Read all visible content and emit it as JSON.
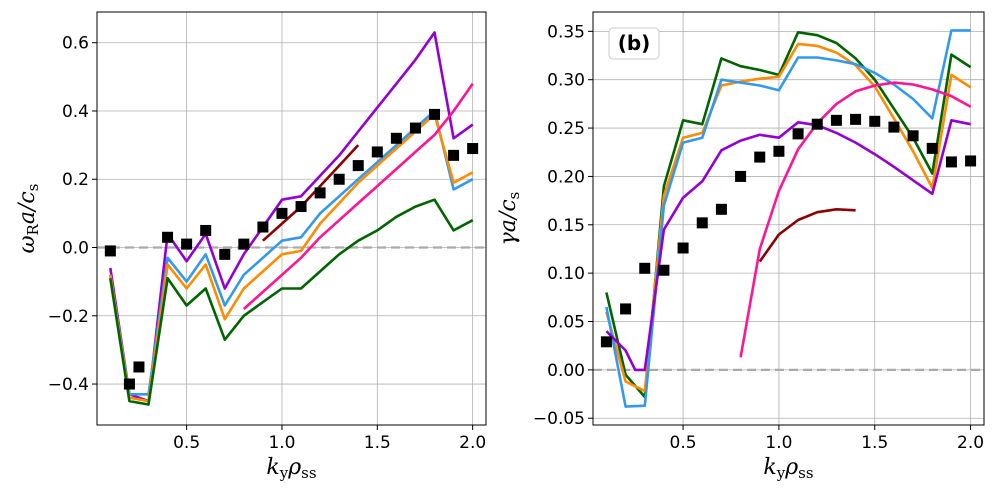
{
  "chart_data": [
    {
      "type": "line",
      "panel": "left",
      "title": "",
      "annotation": "",
      "xlabel_main": "k",
      "xlabel_sub1": "y",
      "xlabel_main2": "ρ",
      "xlabel_sub2": "ss",
      "ylabel_main": "ω",
      "ylabel_sub1": "R",
      "ylabel_main2": "a/c",
      "ylabel_sub2": "s",
      "xlim": [
        0.03,
        2.07
      ],
      "ylim": [
        -0.52,
        0.69
      ],
      "xticks": [
        0.5,
        1.0,
        1.5,
        2.0
      ],
      "xtick_labels": [
        "0.5",
        "1.0",
        "1.5",
        "2.0"
      ],
      "yticks": [
        -0.4,
        -0.2,
        0.0,
        0.2,
        0.4,
        0.6
      ],
      "ytick_labels": [
        "−0.4",
        "−0.2",
        "0.0",
        "0.2",
        "0.4",
        "0.6"
      ],
      "grid": true,
      "zero_line": true,
      "series": [
        {
          "name": "purple",
          "color": "#9400d3",
          "x": [
            0.1,
            0.2,
            0.3,
            0.4,
            0.5,
            0.6,
            0.7,
            0.8,
            0.9,
            1.0,
            1.1,
            1.2,
            1.3,
            1.4,
            1.5,
            1.6,
            1.7,
            1.8,
            1.9,
            2.0
          ],
          "y": [
            -0.06,
            -0.43,
            -0.45,
            0.04,
            -0.04,
            0.04,
            -0.12,
            -0.02,
            0.06,
            0.14,
            0.15,
            0.21,
            0.27,
            0.34,
            0.41,
            0.48,
            0.55,
            0.63,
            0.32,
            0.36
          ]
        },
        {
          "name": "blue",
          "color": "#3399ee",
          "x": [
            0.1,
            0.2,
            0.3,
            0.4,
            0.5,
            0.6,
            0.7,
            0.8,
            0.9,
            1.0,
            1.1,
            1.2,
            1.3,
            1.4,
            1.5,
            1.6,
            1.7,
            1.8,
            1.9,
            2.0
          ],
          "y": [
            -0.08,
            -0.43,
            -0.43,
            -0.03,
            -0.1,
            -0.02,
            -0.17,
            -0.08,
            -0.03,
            0.02,
            0.03,
            0.1,
            0.15,
            0.2,
            0.25,
            0.3,
            0.35,
            0.4,
            0.17,
            0.2
          ]
        },
        {
          "name": "orange",
          "color": "#ff8c00",
          "x": [
            0.1,
            0.2,
            0.3,
            0.4,
            0.5,
            0.6,
            0.7,
            0.8,
            0.9,
            1.0,
            1.1,
            1.2,
            1.3,
            1.4,
            1.5,
            1.6,
            1.7,
            1.8,
            1.9,
            2.0
          ],
          "y": [
            -0.08,
            -0.44,
            -0.45,
            -0.05,
            -0.12,
            -0.05,
            -0.21,
            -0.12,
            -0.07,
            -0.02,
            -0.01,
            0.07,
            0.13,
            0.19,
            0.24,
            0.29,
            0.34,
            0.39,
            0.19,
            0.22
          ]
        },
        {
          "name": "green",
          "color": "#006400",
          "x": [
            0.1,
            0.2,
            0.3,
            0.4,
            0.5,
            0.6,
            0.7,
            0.8,
            0.9,
            1.0,
            1.1,
            1.2,
            1.3,
            1.4,
            1.5,
            1.6,
            1.7,
            1.8,
            1.9,
            2.0
          ],
          "y": [
            -0.09,
            -0.45,
            -0.46,
            -0.09,
            -0.17,
            -0.12,
            -0.27,
            -0.2,
            -0.16,
            -0.12,
            -0.12,
            -0.07,
            -0.02,
            0.02,
            0.05,
            0.09,
            0.12,
            0.14,
            0.05,
            0.08
          ]
        },
        {
          "name": "pink",
          "color": "#ff1493",
          "x": [
            0.8,
            0.9,
            1.0,
            1.1,
            1.2,
            1.3,
            1.4,
            1.5,
            1.6,
            1.7,
            1.8,
            1.9,
            2.0
          ],
          "y": [
            -0.18,
            -0.13,
            -0.08,
            -0.03,
            0.03,
            0.08,
            0.13,
            0.18,
            0.23,
            0.28,
            0.33,
            0.4,
            0.48
          ]
        },
        {
          "name": "darkred",
          "color": "#8b0000",
          "x": [
            0.9,
            1.0,
            1.1,
            1.2,
            1.3,
            1.4
          ],
          "y": [
            0.02,
            0.07,
            0.12,
            0.18,
            0.24,
            0.3
          ]
        }
      ],
      "markers": {
        "name": "data",
        "color": "#000000",
        "x": [
          0.1,
          0.2,
          0.25,
          0.4,
          0.5,
          0.6,
          0.7,
          0.8,
          0.9,
          1.0,
          1.1,
          1.2,
          1.3,
          1.4,
          1.5,
          1.6,
          1.7,
          1.8,
          1.9,
          2.0
        ],
        "y": [
          -0.01,
          -0.4,
          -0.35,
          0.03,
          0.01,
          0.05,
          -0.02,
          0.01,
          0.06,
          0.1,
          0.12,
          0.16,
          0.2,
          0.24,
          0.28,
          0.32,
          0.35,
          0.39,
          0.27,
          0.29
        ]
      }
    },
    {
      "type": "line",
      "panel": "right",
      "title": "",
      "annotation": "(b)",
      "xlabel_main": "k",
      "xlabel_sub1": "y",
      "xlabel_main2": "ρ",
      "xlabel_sub2": "ss",
      "ylabel_main": "γ",
      "ylabel_sub1": "",
      "ylabel_main2": "a/c",
      "ylabel_sub2": "s",
      "xlim": [
        0.03,
        2.07
      ],
      "ylim": [
        -0.057,
        0.37
      ],
      "xticks": [
        0.5,
        1.0,
        1.5,
        2.0
      ],
      "xtick_labels": [
        "0.5",
        "1.0",
        "1.5",
        "2.0"
      ],
      "yticks": [
        -0.05,
        0.0,
        0.05,
        0.1,
        0.15,
        0.2,
        0.25,
        0.3,
        0.35
      ],
      "ytick_labels": [
        "−0.05",
        "0.00",
        "0.05",
        "0.10",
        "0.15",
        "0.20",
        "0.25",
        "0.30",
        "0.35"
      ],
      "grid": true,
      "zero_line": true,
      "series": [
        {
          "name": "green",
          "color": "#006400",
          "x": [
            0.1,
            0.2,
            0.3,
            0.4,
            0.5,
            0.6,
            0.7,
            0.8,
            0.9,
            1.0,
            1.1,
            1.2,
            1.3,
            1.4,
            1.5,
            1.6,
            1.7,
            1.8,
            1.9,
            2.0
          ],
          "y": [
            0.08,
            -0.005,
            -0.028,
            0.19,
            0.258,
            0.254,
            0.322,
            0.314,
            0.31,
            0.305,
            0.349,
            0.346,
            0.338,
            0.322,
            0.3,
            0.27,
            0.24,
            0.203,
            0.326,
            0.313
          ]
        },
        {
          "name": "orange",
          "color": "#ff8c00",
          "x": [
            0.1,
            0.2,
            0.3,
            0.4,
            0.5,
            0.6,
            0.7,
            0.8,
            0.9,
            1.0,
            1.1,
            1.2,
            1.3,
            1.4,
            1.5,
            1.6,
            1.7,
            1.8,
            1.9,
            2.0
          ],
          "y": [
            0.06,
            -0.012,
            -0.022,
            0.18,
            0.24,
            0.245,
            0.294,
            0.298,
            0.301,
            0.303,
            0.337,
            0.335,
            0.328,
            0.315,
            0.293,
            0.26,
            0.226,
            0.188,
            0.305,
            0.292
          ]
        },
        {
          "name": "blue",
          "color": "#3399ee",
          "x": [
            0.1,
            0.2,
            0.3,
            0.4,
            0.5,
            0.6,
            0.7,
            0.8,
            0.9,
            1.0,
            1.1,
            1.2,
            1.3,
            1.4,
            1.5,
            1.6,
            1.7,
            1.8,
            1.9,
            2.0
          ],
          "y": [
            0.065,
            -0.038,
            -0.037,
            0.17,
            0.235,
            0.24,
            0.3,
            0.297,
            0.294,
            0.289,
            0.323,
            0.323,
            0.32,
            0.316,
            0.307,
            0.295,
            0.28,
            0.26,
            0.351,
            0.351
          ]
        },
        {
          "name": "purple",
          "color": "#9400d3",
          "x": [
            0.1,
            0.2,
            0.25,
            0.3,
            0.4,
            0.5,
            0.6,
            0.7,
            0.8,
            0.9,
            1.0,
            1.1,
            1.2,
            1.3,
            1.4,
            1.5,
            1.6,
            1.7,
            1.8,
            1.9,
            2.0
          ],
          "y": [
            0.04,
            0.02,
            0.0,
            0.0,
            0.145,
            0.178,
            0.195,
            0.227,
            0.237,
            0.243,
            0.24,
            0.256,
            0.253,
            0.245,
            0.235,
            0.223,
            0.21,
            0.196,
            0.182,
            0.258,
            0.254
          ]
        },
        {
          "name": "pink",
          "color": "#ff1493",
          "x": [
            0.8,
            0.9,
            1.0,
            1.1,
            1.2,
            1.3,
            1.4,
            1.5,
            1.6,
            1.7,
            1.8,
            1.9,
            2.0
          ],
          "y": [
            0.013,
            0.125,
            0.185,
            0.228,
            0.255,
            0.275,
            0.288,
            0.294,
            0.297,
            0.295,
            0.29,
            0.283,
            0.272
          ]
        },
        {
          "name": "darkred",
          "color": "#8b0000",
          "x": [
            0.9,
            1.0,
            1.1,
            1.2,
            1.3,
            1.4
          ],
          "y": [
            0.112,
            0.14,
            0.155,
            0.163,
            0.166,
            0.165
          ]
        }
      ],
      "markers": {
        "name": "data",
        "color": "#000000",
        "x": [
          0.1,
          0.2,
          0.3,
          0.4,
          0.5,
          0.6,
          0.7,
          0.8,
          0.9,
          1.0,
          1.1,
          1.2,
          1.3,
          1.4,
          1.5,
          1.6,
          1.7,
          1.8,
          1.9,
          2.0
        ],
        "y": [
          0.029,
          0.063,
          0.105,
          0.103,
          0.126,
          0.152,
          0.166,
          0.2,
          0.22,
          0.226,
          0.244,
          0.254,
          0.258,
          0.259,
          0.257,
          0.251,
          0.242,
          0.229,
          0.215,
          0.216
        ]
      }
    }
  ]
}
